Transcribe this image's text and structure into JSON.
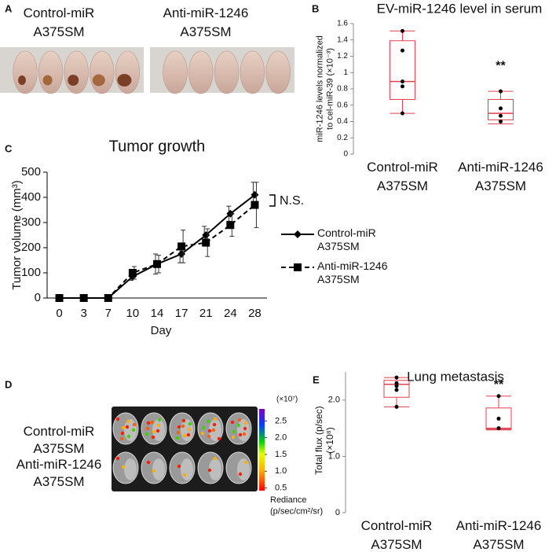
{
  "chart_data": [
    {
      "type": "photo",
      "panel": "A",
      "labels": [
        "Control-miR\nA375SM",
        "Anti-miR-1246\nA375SM"
      ]
    },
    {
      "type": "box",
      "panel": "B",
      "title": "EV-miR-1246 level in serum",
      "ylabel": "miR-1246 levels normalized\nto cel-miR-39 (×10⁻³)",
      "categories": [
        "Control-miR\nA375SM",
        "Anti-miR-1246\nA375SM"
      ],
      "color": "#e0404f",
      "ylim": [
        0,
        1.6
      ],
      "yticks": [
        0,
        0.2,
        0.4,
        0.6,
        0.8,
        1,
        1.2,
        1.4,
        1.6
      ],
      "boxes": [
        {
          "min": 0.5,
          "q1": 0.67,
          "median": 0.89,
          "q3": 1.39,
          "max": 1.51,
          "points": [
            1.51,
            1.27,
            0.89,
            0.83,
            0.5
          ]
        },
        {
          "min": 0.37,
          "q1": 0.42,
          "median": 0.5,
          "q3": 0.67,
          "max": 0.77,
          "points": [
            0.77,
            0.56,
            0.47,
            0.4
          ]
        }
      ],
      "annotation": "**"
    },
    {
      "type": "line",
      "panel": "C",
      "title": "Tumor growth",
      "xlabel": "Day",
      "ylabel": "Tumor volume (mm³)",
      "categories": [
        "0",
        "3",
        "7",
        "10",
        "14",
        "17",
        "21",
        "24",
        "28"
      ],
      "ylim": [
        0,
        500
      ],
      "yticks": [
        0,
        100,
        200,
        300,
        400,
        500
      ],
      "series": [
        {
          "name": "Control-miR\nA375SM",
          "color": "#000000",
          "marker": "diamond",
          "dash": "none",
          "values": [
            0,
            0,
            0,
            85,
            135,
            175,
            250,
            335,
            410
          ],
          "errors": [
            0,
            0,
            0,
            15,
            40,
            35,
            35,
            30,
            50
          ]
        },
        {
          "name": "Anti-miR-1246\nA375SM",
          "color": "#000000",
          "marker": "square",
          "dash": "6 4",
          "values": [
            0,
            0,
            0,
            100,
            135,
            205,
            220,
            290,
            370
          ],
          "errors": [
            0,
            0,
            0,
            25,
            35,
            65,
            55,
            45,
            90
          ]
        }
      ],
      "annotation": "N.S."
    },
    {
      "type": "image",
      "panel": "D",
      "labels": [
        "Control-miR\nA375SM",
        "Anti-miR-1246\nA375SM"
      ],
      "colorbar": {
        "unit": "(×10⁷)",
        "lim": [
          0.42,
          2.86
        ],
        "ticks": [
          2.5,
          {
            "value": 2,
            "label": "2.0"
          },
          1.5,
          {
            "value": 1,
            "label": "1.0"
          },
          0.5
        ],
        "title": "Rediance\n(p/sec/cm²/sr)"
      }
    },
    {
      "type": "box",
      "panel": "E",
      "title": "Lung metastasis",
      "ylabel": "Total flux (p/sec)\n(×10⁸)",
      "categories": [
        "Control-miR\nA375SM",
        "Anti-miR-1246\nA375SM"
      ],
      "color": "#e0404f",
      "ylim": [
        0,
        2.5
      ],
      "yticks": [
        0,
        {
          "value": 1,
          "label": "1.0"
        },
        {
          "value": 2,
          "label": "2.0"
        }
      ],
      "boxes": [
        {
          "min": 1.88,
          "q1": 2.05,
          "median": 2.28,
          "q3": 2.35,
          "max": 2.4,
          "points": [
            2.4,
            2.3,
            2.25,
            2.18,
            1.88
          ]
        },
        {
          "min": 1.47,
          "q1": 1.48,
          "median": 1.5,
          "q3": 1.86,
          "max": 2.07,
          "points": [
            2.07,
            1.67,
            1.5
          ]
        }
      ],
      "annotation": "**"
    }
  ]
}
